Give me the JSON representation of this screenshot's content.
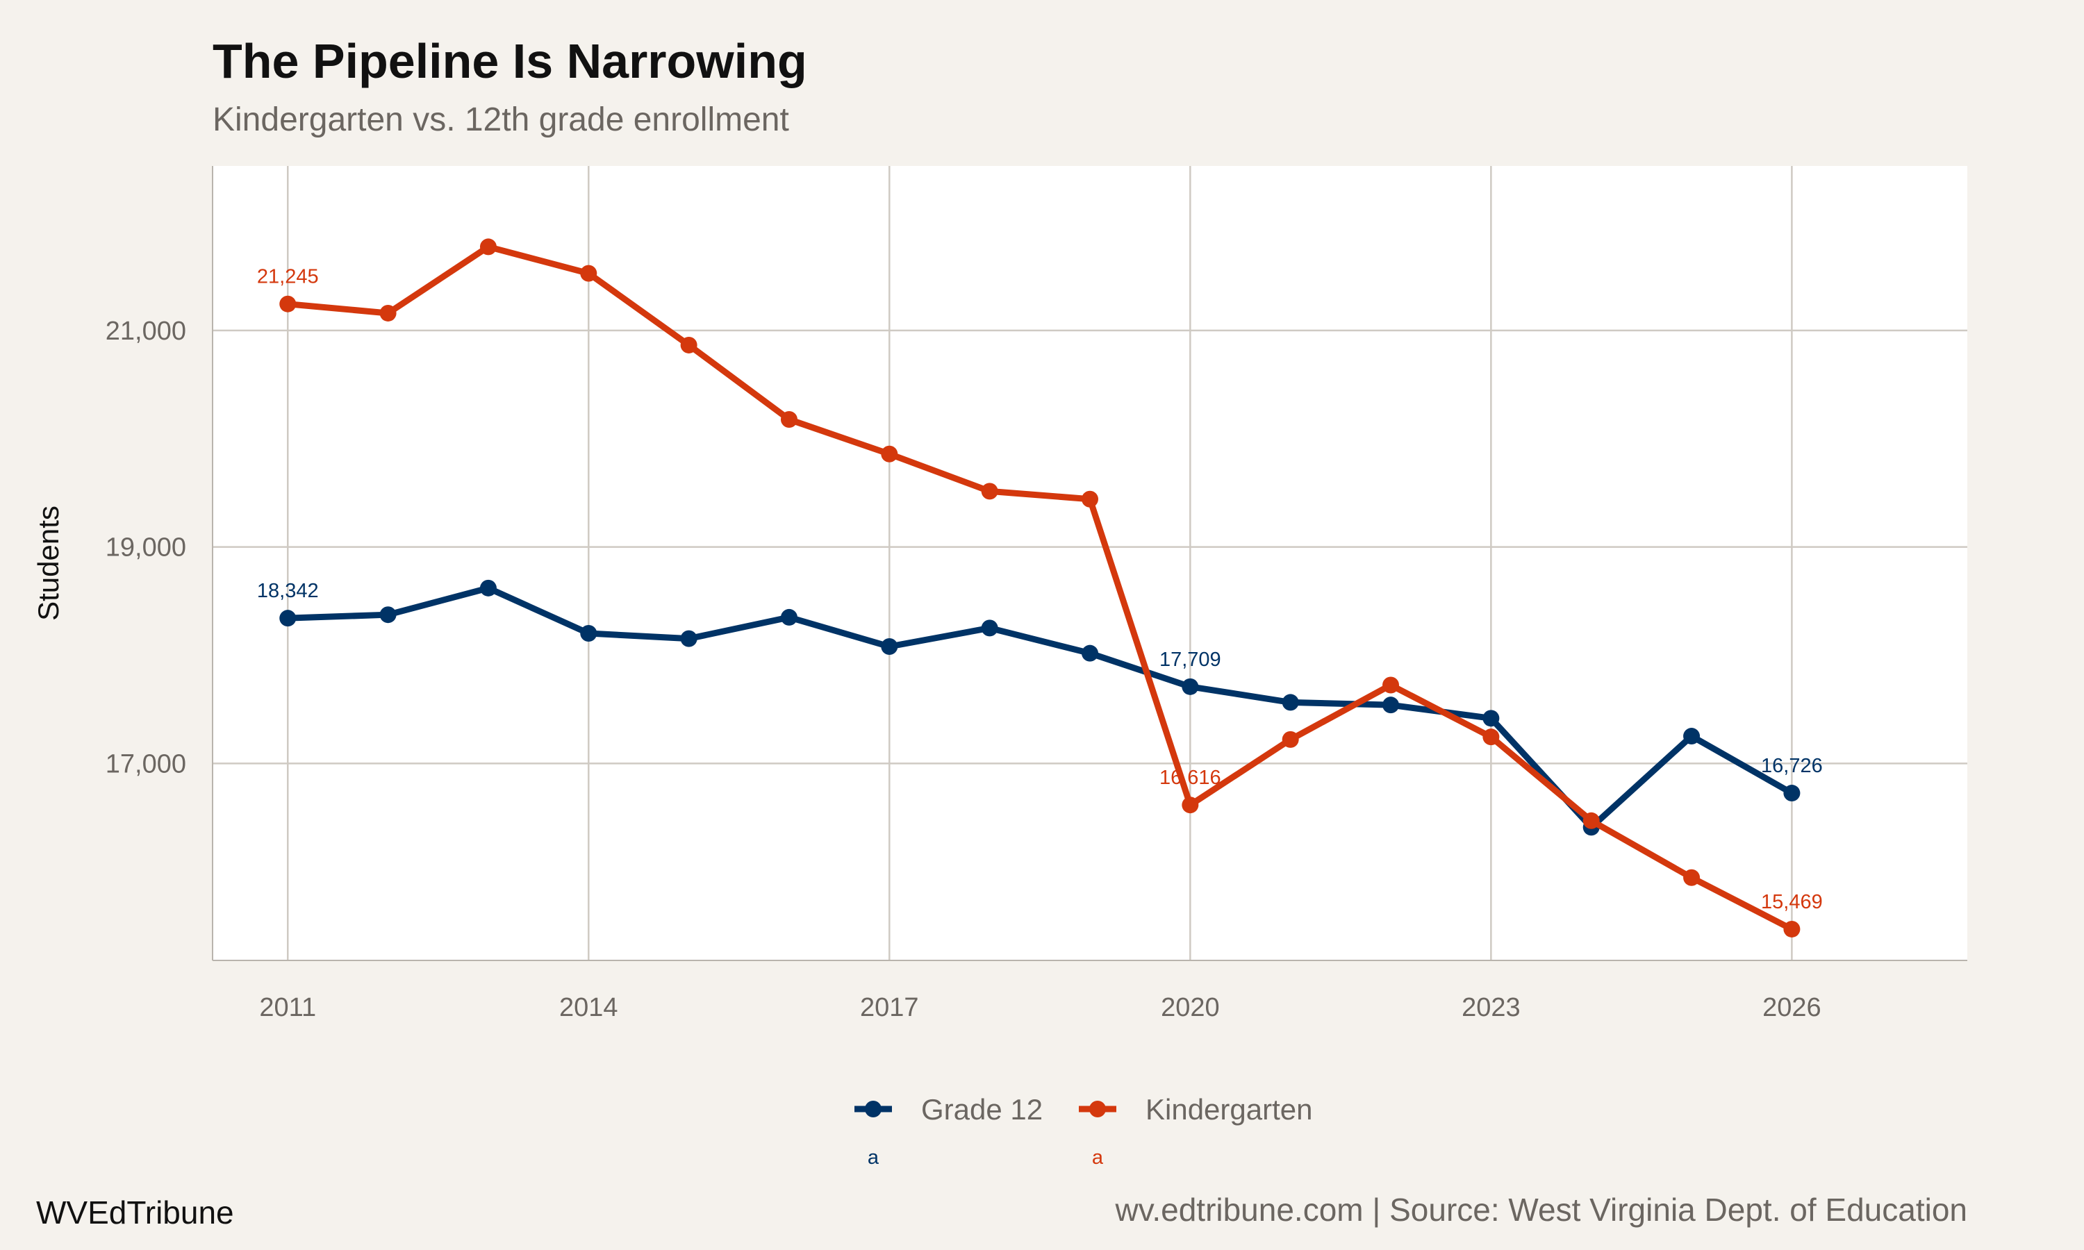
{
  "chart_data": {
    "type": "line",
    "title": "The Pipeline Is Narrowing",
    "subtitle": "Kindergarten vs. 12th grade enrollment",
    "xlabel": "",
    "ylabel": "Students",
    "x": [
      2011,
      2012,
      2013,
      2014,
      2015,
      2016,
      2017,
      2018,
      2019,
      2020,
      2021,
      2022,
      2023,
      2024,
      2025,
      2026
    ],
    "xlim": [
      2010.25,
      2027.75
    ],
    "ylim": [
      15180,
      22520
    ],
    "x_ticks": [
      2011,
      2014,
      2017,
      2020,
      2023,
      2026
    ],
    "x_tick_labels": [
      "2011",
      "2014",
      "2017",
      "2020",
      "2023",
      "2026"
    ],
    "y_ticks": [
      17000,
      19000,
      21000
    ],
    "y_tick_labels": [
      "17,000",
      "19,000",
      "21,000"
    ],
    "grid": true,
    "legend_position": "bottom",
    "series": [
      {
        "name": "Grade 12",
        "color": "#003366",
        "values": [
          18342,
          18374,
          18620,
          18202,
          18153,
          18350,
          18080,
          18251,
          18018,
          17709,
          17564,
          17540,
          17417,
          16410,
          17252,
          16726
        ],
        "labels": [
          {
            "x": 2011,
            "text": "18,342"
          },
          {
            "x": 2020,
            "text": "17,709"
          },
          {
            "x": 2026,
            "text": "16,726"
          }
        ],
        "legend_marker_text": "a"
      },
      {
        "name": "Kindergarten",
        "color": "#d4380d",
        "values": [
          21245,
          21160,
          21773,
          21528,
          20865,
          20178,
          19859,
          19515,
          19442,
          16616,
          17221,
          17724,
          17245,
          16471,
          15945,
          15469
        ],
        "labels": [
          {
            "x": 2011,
            "text": "21,245"
          },
          {
            "x": 2020,
            "text": "16,616"
          },
          {
            "x": 2026,
            "text": "15,469"
          }
        ],
        "legend_marker_text": "a"
      }
    ]
  },
  "footer": {
    "brand": "WVEdTribune",
    "source": "wv.edtribune.com | Source: West Virginia Dept. of Education"
  },
  "colors": {
    "background": "#f5f2ed",
    "panel": "#ffffff",
    "grid": "#cfcac3"
  }
}
